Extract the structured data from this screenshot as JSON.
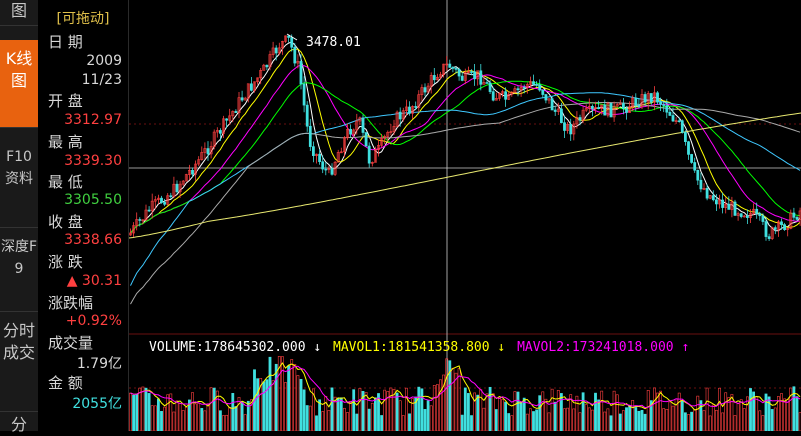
{
  "sidebar": {
    "tabs": [
      {
        "label": "图",
        "active": false
      },
      {
        "label": "K线图",
        "active": true
      },
      {
        "label": "F10资料",
        "active": false
      },
      {
        "label": "深度F9",
        "active": false
      },
      {
        "label": "分时成交",
        "active": false
      },
      {
        "label": "分",
        "active": false
      }
    ]
  },
  "info": {
    "title": "[可拖动]",
    "date_label": "日  期",
    "date_year": "2009",
    "date_md": "11/23",
    "open_label": "开  盘",
    "open_value": "3312.97",
    "high_label": "最  高",
    "high_value": "3339.30",
    "low_label": "最  低",
    "low_value": "3305.50",
    "close_label": "收  盘",
    "close_value": "3338.66",
    "change_label": "涨  跌",
    "change_value": "▲ 30.31",
    "pct_label": "涨跌幅",
    "pct_value": "+0.92%",
    "vol_label": "成交量",
    "vol_value": "1.79亿",
    "amount_label": "金  额",
    "amount_value": "2055亿"
  },
  "chart": {
    "peak_label": "3478.01",
    "colors": {
      "up": "#ff4040",
      "down": "#40e0e0",
      "ma5": "#ffffff",
      "ma10": "#ffff00",
      "ma20": "#ff00ff",
      "ma30": "#00ff00",
      "ma60": "#3fc8ff",
      "ma120": "#aaaaaa",
      "ma250": "#e8e870",
      "crosshair": "#cccccc"
    }
  },
  "volume_legend": {
    "volume": "VOLUME:178645302.000",
    "volume_arrow": "↓",
    "mavol1": "MAVOL1:181541358.800",
    "mavol1_arrow": "↓",
    "mavol2": "MAVOL2:173241018.000",
    "mavol2_arrow": "↑"
  }
}
